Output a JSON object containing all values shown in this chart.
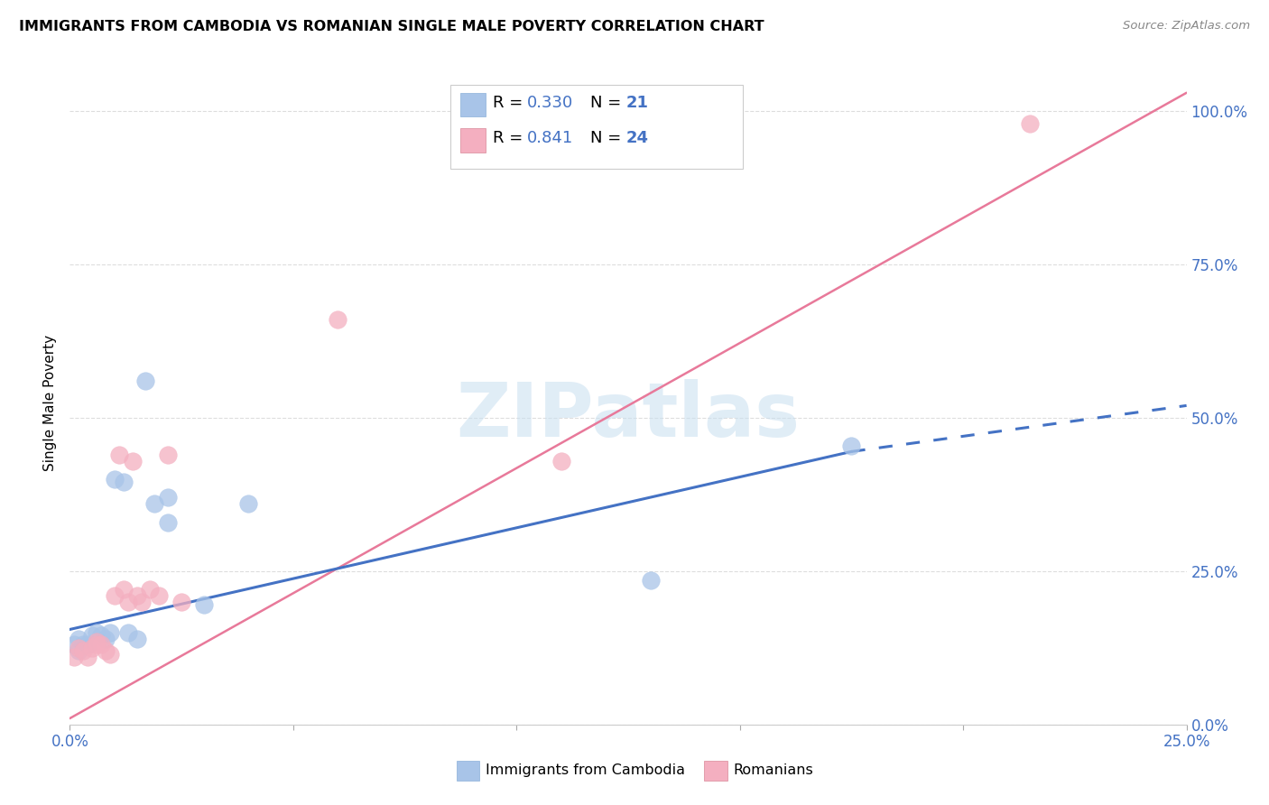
{
  "title": "IMMIGRANTS FROM CAMBODIA VS ROMANIAN SINGLE MALE POVERTY CORRELATION CHART",
  "source": "Source: ZipAtlas.com",
  "ylabel": "Single Male Poverty",
  "ytick_labels": [
    "0.0%",
    "25.0%",
    "50.0%",
    "75.0%",
    "100.0%"
  ],
  "ytick_values": [
    0.0,
    0.25,
    0.5,
    0.75,
    1.0
  ],
  "xlim": [
    0.0,
    0.25
  ],
  "ylim": [
    0.0,
    1.05
  ],
  "color_cambodia": "#a8c4e8",
  "color_romanian": "#f4afc0",
  "color_line_cambodia": "#4472c4",
  "color_line_romanian": "#e8799a",
  "color_blue_text": "#4472c4",
  "color_pink_text": "#e8799a",
  "scatter_cambodia_x": [
    0.001,
    0.002,
    0.002,
    0.003,
    0.004,
    0.005,
    0.006,
    0.007,
    0.008,
    0.009,
    0.01,
    0.012,
    0.013,
    0.015,
    0.017,
    0.019,
    0.022,
    0.022,
    0.03,
    0.04,
    0.13,
    0.175
  ],
  "scatter_cambodia_y": [
    0.13,
    0.14,
    0.12,
    0.13,
    0.13,
    0.145,
    0.15,
    0.145,
    0.14,
    0.15,
    0.4,
    0.395,
    0.15,
    0.14,
    0.56,
    0.36,
    0.33,
    0.37,
    0.195,
    0.36,
    0.235,
    0.455
  ],
  "scatter_romanian_x": [
    0.001,
    0.002,
    0.003,
    0.004,
    0.005,
    0.006,
    0.006,
    0.007,
    0.008,
    0.009,
    0.01,
    0.011,
    0.012,
    0.013,
    0.014,
    0.015,
    0.016,
    0.018,
    0.02,
    0.022,
    0.025,
    0.06,
    0.11,
    0.215
  ],
  "scatter_romanian_y": [
    0.11,
    0.125,
    0.12,
    0.11,
    0.125,
    0.135,
    0.13,
    0.13,
    0.12,
    0.115,
    0.21,
    0.44,
    0.22,
    0.2,
    0.43,
    0.21,
    0.2,
    0.22,
    0.21,
    0.44,
    0.2,
    0.66,
    0.43,
    0.98
  ],
  "trendline_cambodia_x0": 0.0,
  "trendline_cambodia_y0": 0.155,
  "trendline_cambodia_x1": 0.175,
  "trendline_cambodia_y1": 0.445,
  "trendline_cambodia_xd": 0.25,
  "trendline_cambodia_yd": 0.52,
  "trendline_romanian_x0": 0.0,
  "trendline_romanian_y0": 0.01,
  "trendline_romanian_x1": 0.25,
  "trendline_romanian_y1": 1.03,
  "background_color": "#ffffff",
  "grid_color": "#dddddd"
}
